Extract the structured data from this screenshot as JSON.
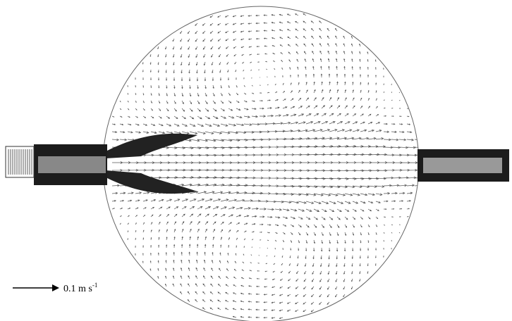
{
  "scale_label": {
    "text": "0.1 m s",
    "superscript": "-1"
  }
}
